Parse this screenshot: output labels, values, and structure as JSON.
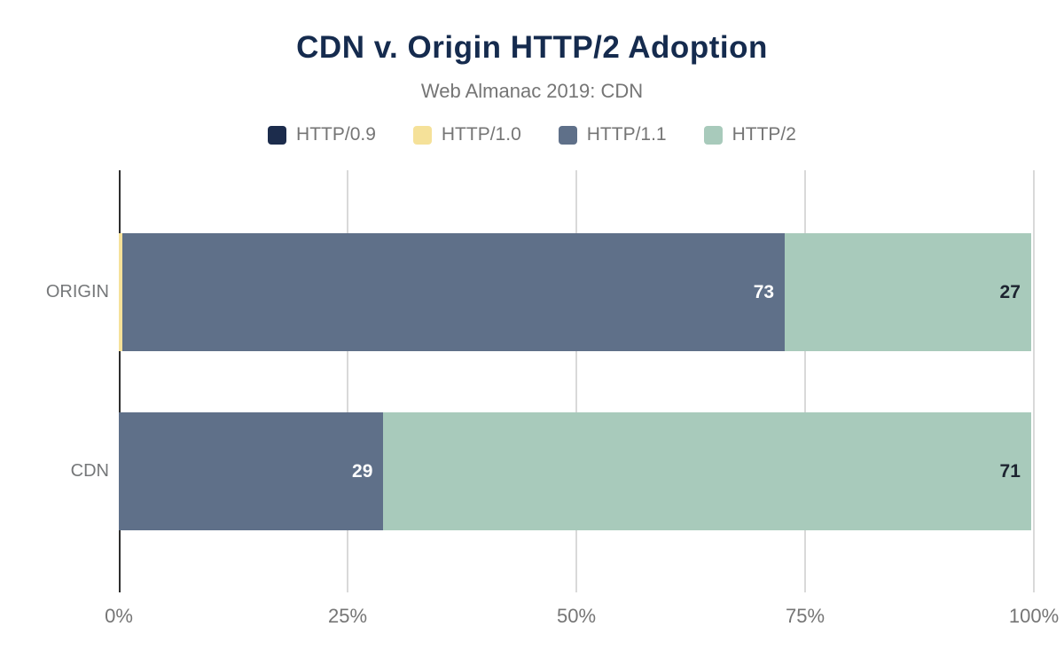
{
  "chart_data": {
    "type": "bar",
    "orientation": "horizontal",
    "stacked": true,
    "title": "CDN v. Origin HTTP/2 Adoption",
    "subtitle": "Web Almanac 2019: CDN",
    "categories": [
      "ORIGIN",
      "CDN"
    ],
    "series": [
      {
        "name": "HTTP/0.9",
        "color": "#1c2c4c",
        "values": [
          0,
          0
        ]
      },
      {
        "name": "HTTP/1.0",
        "color": "#f5e199",
        "values": [
          0.4,
          0
        ]
      },
      {
        "name": "HTTP/1.1",
        "color": "#5f7089",
        "values": [
          72.6,
          29
        ]
      },
      {
        "name": "HTTP/2",
        "color": "#a8cabb",
        "values": [
          27,
          71
        ]
      }
    ],
    "annotations": {
      "origin": {
        "http09": "",
        "http10": "",
        "http11": "73",
        "http2": "27"
      },
      "cdn": {
        "http09": "",
        "http10": "",
        "http11": "29",
        "http2": "71"
      }
    },
    "xlim": [
      0,
      100
    ],
    "xtick_labels": [
      "0%",
      "25%",
      "50%",
      "75%",
      "100%"
    ],
    "grid": "vertical",
    "legend_position": "top"
  },
  "colors": {
    "title": "#152b4e",
    "subtitle_text": "#757575",
    "axis_line": "#2e2e2e",
    "gridline": "#d9d9d9",
    "annotation_light": "#ffffff",
    "annotation_dark": "#1d2430"
  }
}
